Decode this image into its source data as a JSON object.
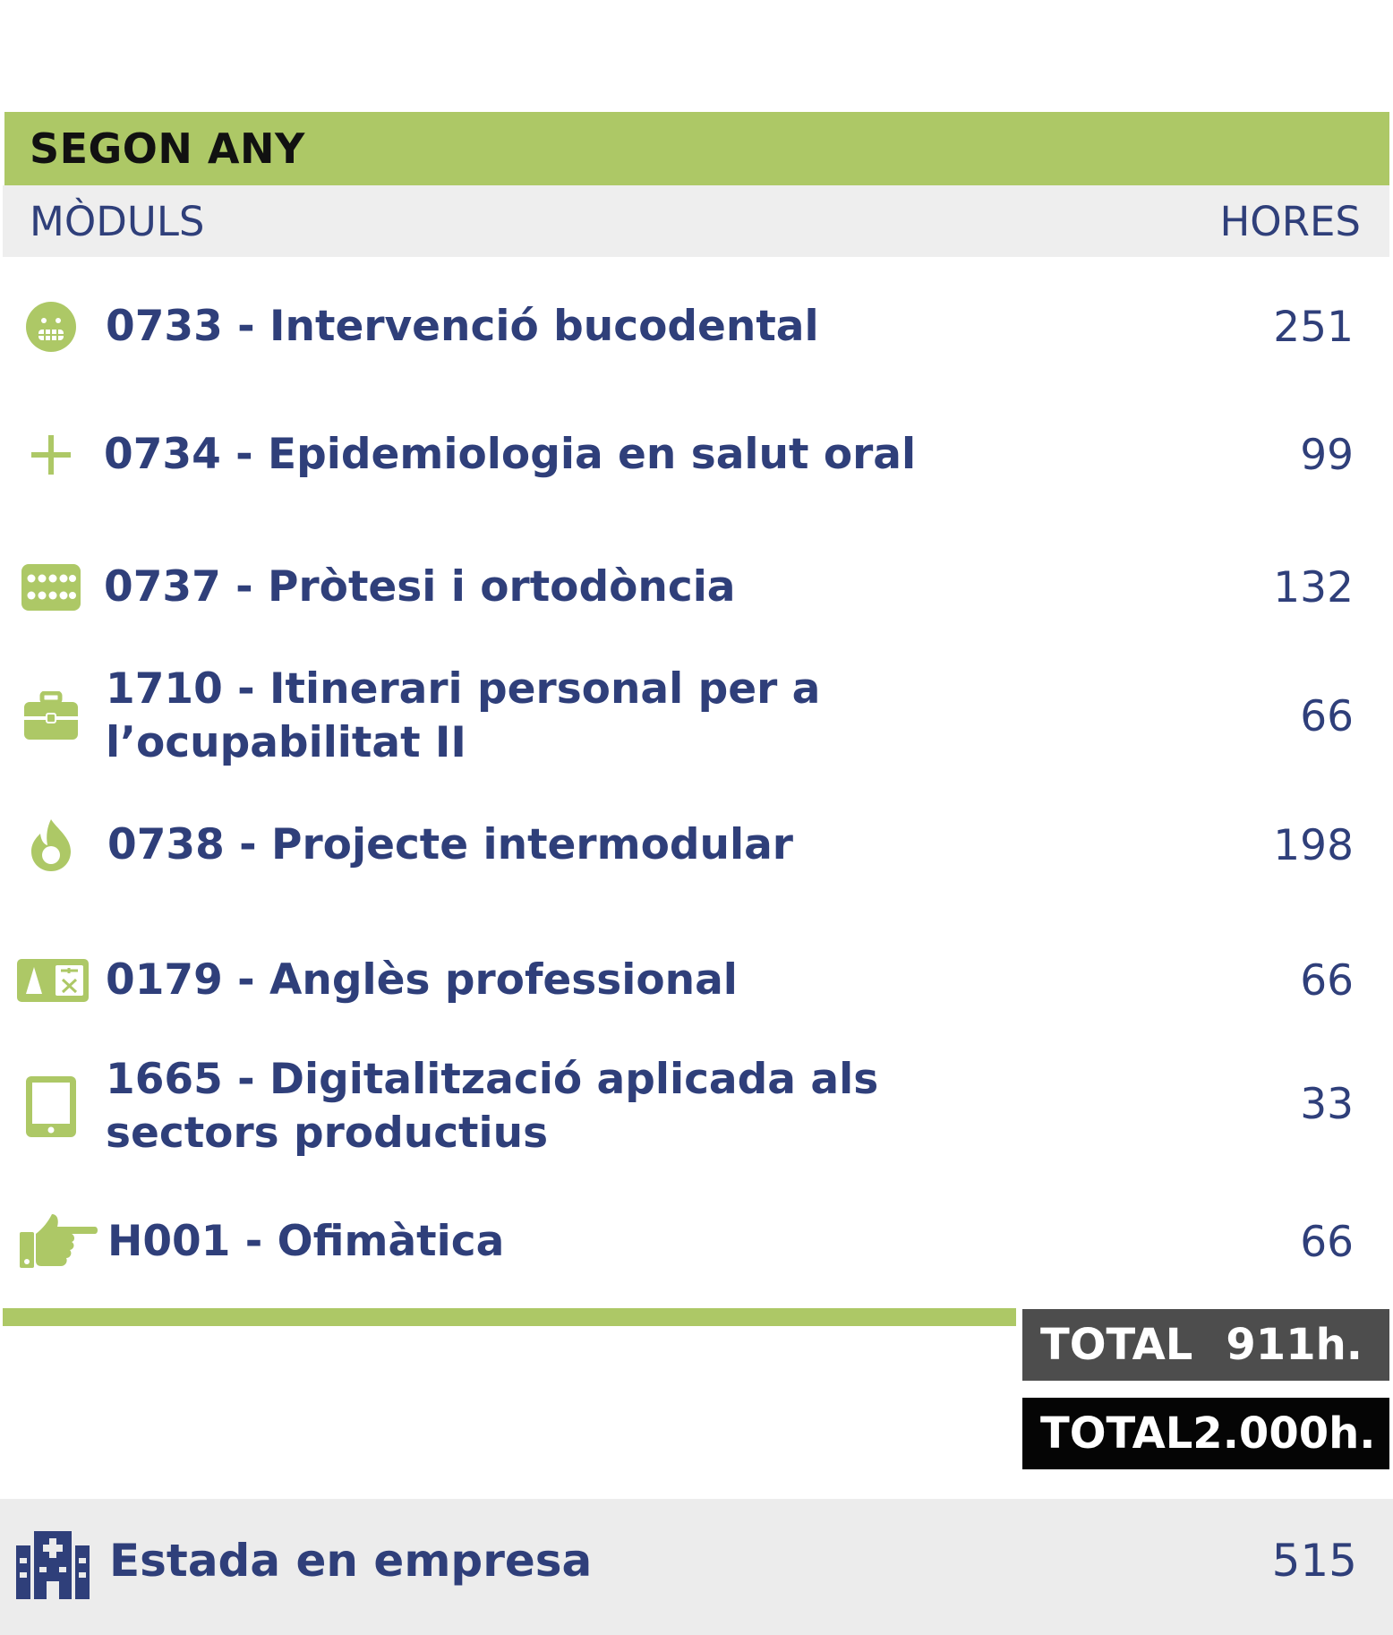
{
  "section": {
    "title": "SEGON ANY"
  },
  "columns": {
    "modules": "MÒDULS",
    "hours": "HORES"
  },
  "modules": [
    {
      "icon": "tooth-smile-icon",
      "label": "0733 - Intervenció bucodental",
      "hours": "251"
    },
    {
      "icon": "plus-icon",
      "label": "0734 - Epidemiologia en salut oral",
      "hours": "99"
    },
    {
      "icon": "denture-icon",
      "label": "0737 - Pròtesi i ortodòncia",
      "hours": "132"
    },
    {
      "icon": "briefcase-icon",
      "label": "1710 - Itinerari personal per a l’ocupabilitat II",
      "hours": "66"
    },
    {
      "icon": "flame-icon",
      "label": "0738 - Projecte intermodular",
      "hours": "198"
    },
    {
      "icon": "translate-icon",
      "label": "0179 - Anglès professional",
      "hours": "66"
    },
    {
      "icon": "tablet-icon",
      "label": "1665 - Digitalització aplicada als sectors productius",
      "hours": "33"
    },
    {
      "icon": "pointing-hand-icon",
      "label": "H001 - Ofimàtica",
      "hours": "66"
    }
  ],
  "totals": [
    {
      "label": "TOTAL",
      "value": "911h."
    },
    {
      "label": "TOTAL",
      "value": "2.000h."
    }
  ],
  "estada": {
    "icon": "hospital-building-icon",
    "label": "Estada en empresa",
    "hours": "515"
  },
  "colors": {
    "accent_green": "#adc866",
    "text_blue": "#2f3f7a",
    "total_dark": "#4d4d4d",
    "total_black": "#050505"
  }
}
